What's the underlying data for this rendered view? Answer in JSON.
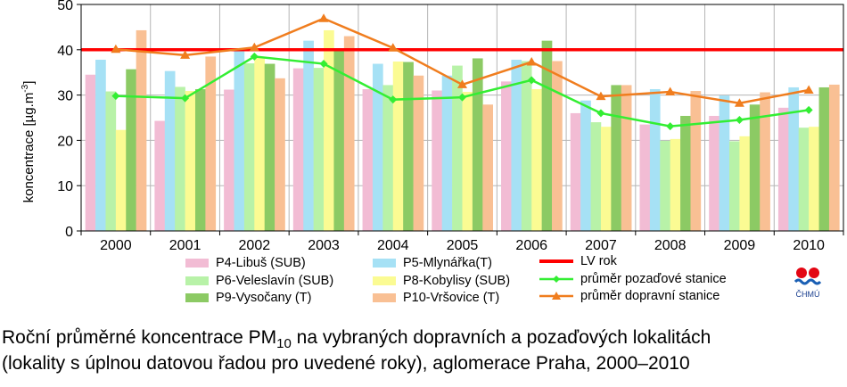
{
  "chart_data": {
    "type": "bar",
    "ylabel": "koncentrace [µg.m-3]",
    "ylabel_main": "koncentrace [µg.m",
    "ylabel_sup": "-3",
    "ylabel_end": "]",
    "ylim": [
      0,
      50
    ],
    "yticks": [
      "0",
      "10",
      "20",
      "30",
      "40",
      "50"
    ],
    "categories": [
      "2000",
      "2001",
      "2002",
      "2003",
      "2004",
      "2005",
      "2006",
      "2007",
      "2008",
      "2009",
      "2010"
    ],
    "series": [
      {
        "name": "P4-Libuš (SUB)",
        "color": "#f2bcd4",
        "values": [
          34.5,
          24.3,
          31.2,
          35.9,
          31.3,
          31.0,
          33.0,
          26.0,
          23.5,
          25.4,
          27.2
        ]
      },
      {
        "name": "P5-Mlynářka(T)",
        "color": "#a6e1f5",
        "values": [
          37.8,
          35.3,
          40.3,
          42.0,
          36.9,
          34.3,
          37.8,
          28.8,
          31.3,
          29.9,
          31.7
        ]
      },
      {
        "name": "P6-Veleslavín (SUB)",
        "color": "#b8f2a8",
        "values": [
          30.8,
          31.8,
          37.0,
          36.0,
          32.2,
          36.5,
          37.5,
          24.0,
          19.9,
          19.8,
          22.8
        ]
      },
      {
        "name": "P8-Kobylisy (SUB)",
        "color": "#fbfb93",
        "values": [
          22.3,
          30.9,
          38.4,
          44.3,
          37.4,
          30.7,
          31.3,
          23.0,
          20.3,
          20.9,
          23.0
        ]
      },
      {
        "name": "P9-Vysočany (T)",
        "color": "#8cca64",
        "values": [
          35.7,
          31.3,
          36.9,
          40.2,
          37.3,
          38.1,
          42.0,
          32.2,
          25.4,
          27.9,
          31.7
        ]
      },
      {
        "name": "P10-Vršovice (T)",
        "color": "#f9c094",
        "values": [
          44.3,
          38.5,
          33.7,
          43.0,
          34.3,
          27.9,
          37.5,
          32.2,
          30.9,
          30.6,
          32.3
        ]
      }
    ],
    "lines": [
      {
        "name": "LV rok",
        "color": "#ff0000",
        "value": 40
      },
      {
        "name": "průměr pozaďové stanice",
        "color": "#33ee33",
        "values": [
          29.8,
          29.3,
          38.5,
          36.9,
          29.0,
          29.5,
          33.3,
          26.0,
          23.1,
          24.5,
          26.7
        ]
      },
      {
        "name": "průměr dopravní stanice",
        "color": "#f07d1e",
        "values": [
          40.1,
          38.8,
          40.5,
          46.9,
          40.4,
          32.3,
          37.3,
          29.7,
          30.7,
          28.2,
          31.1
        ]
      }
    ]
  },
  "logo_text": "ČHMÚ",
  "caption": {
    "line1_pre": "Roční průměrné koncentrace PM",
    "line1_sub": "10",
    "line1_post": " na vybraných dopravních a pozaďových lokalitách",
    "line2": "(lokality s úplnou datovou řadou pro uvedené roky), aglomerace Praha, 2000–2010"
  }
}
